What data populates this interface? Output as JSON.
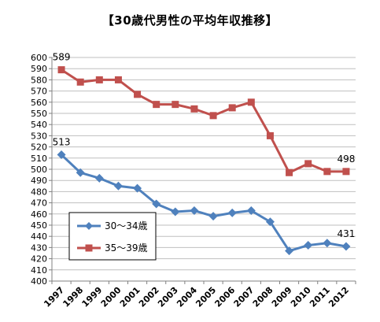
{
  "chart_data": {
    "type": "line",
    "title": "【30歳代男性の平均年収推移】",
    "categories": [
      "1997",
      "1998",
      "1999",
      "2000",
      "2001",
      "2002",
      "2003",
      "2004",
      "2005",
      "2006",
      "2007",
      "2008",
      "2009",
      "2010",
      "2011",
      "2012"
    ],
    "series": [
      {
        "name": "30～34歳",
        "color": "#4F81BD",
        "marker": "diamond",
        "values": [
          513,
          497,
          492,
          485,
          483,
          469,
          462,
          463,
          458,
          461,
          463,
          453,
          427,
          432,
          434,
          431
        ]
      },
      {
        "name": "35～39歳",
        "color": "#C0504D",
        "marker": "square",
        "values": [
          589,
          578,
          580,
          580,
          567,
          558,
          558,
          554,
          548,
          555,
          560,
          530,
          497,
          505,
          498,
          498
        ]
      }
    ],
    "ylim": [
      400,
      600
    ],
    "ystep": 10,
    "grid": true,
    "data_labels": [
      {
        "series": 0,
        "index": 0,
        "text": "513"
      },
      {
        "series": 0,
        "index": 15,
        "text": "431"
      },
      {
        "series": 1,
        "index": 0,
        "text": "589"
      },
      {
        "series": 1,
        "index": 15,
        "text": "498"
      }
    ],
    "legend": "lower-left inside plot"
  }
}
